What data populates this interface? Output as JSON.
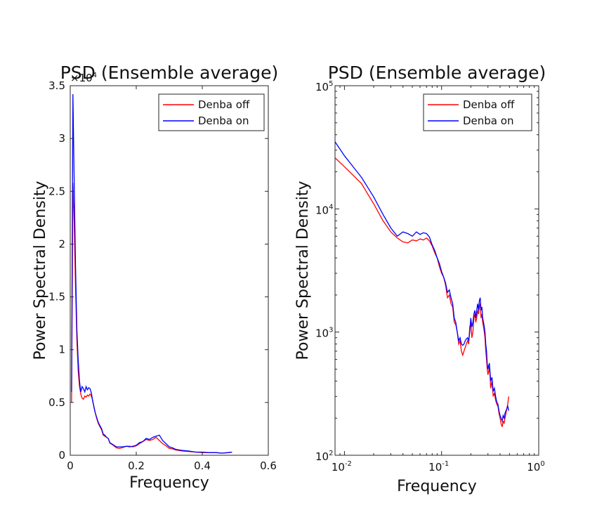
{
  "chart_data": [
    {
      "type": "line",
      "title": "PSD (Ensemble average)",
      "xlabel": "Frequency",
      "ylabel": "Power Spectral Density",
      "y_multiplier": "×10",
      "y_multiplier_exponent": "4",
      "xlim": [
        0,
        0.6
      ],
      "ylim": [
        0,
        35000
      ],
      "x_ticks": [
        "0",
        "0.2",
        "0.4",
        "0.6"
      ],
      "x_tick_values": [
        0,
        0.2,
        0.4,
        0.6
      ],
      "y_ticks": [
        "0",
        "0.5",
        "1",
        "1.5",
        "2",
        "2.5",
        "3",
        "3.5"
      ],
      "y_tick_values": [
        0,
        5000,
        10000,
        15000,
        20000,
        25000,
        30000,
        35000
      ],
      "legend_position": "top-right",
      "series": [
        {
          "name": "Denba off",
          "color": "#ff0000",
          "x": [
            0.004,
            0.008,
            0.012,
            0.016,
            0.02,
            0.024,
            0.028,
            0.032,
            0.036,
            0.04,
            0.044,
            0.048,
            0.052,
            0.056,
            0.06,
            0.064,
            0.068,
            0.072,
            0.076,
            0.08,
            0.085,
            0.09,
            0.095,
            0.1,
            0.105,
            0.11,
            0.115,
            0.12,
            0.13,
            0.14,
            0.15,
            0.16,
            0.17,
            0.18,
            0.19,
            0.2,
            0.21,
            0.22,
            0.23,
            0.24,
            0.25,
            0.26,
            0.27,
            0.28,
            0.29,
            0.3,
            0.31,
            0.32,
            0.34,
            0.36,
            0.38,
            0.4,
            0.42,
            0.44,
            0.46,
            0.48,
            0.49
          ],
          "values": [
            5000,
            25800,
            22000,
            16000,
            11000,
            8000,
            6500,
            5800,
            5400,
            5300,
            5600,
            5500,
            5700,
            5600,
            5800,
            5600,
            5200,
            4500,
            4000,
            3500,
            3000,
            2700,
            2400,
            1900,
            1800,
            1700,
            1600,
            1150,
            950,
            700,
            650,
            750,
            850,
            850,
            800,
            900,
            1100,
            1300,
            1500,
            1400,
            1500,
            1700,
            1400,
            1100,
            900,
            650,
            600,
            500,
            400,
            350,
            300,
            250,
            250,
            250,
            200,
            250,
            300
          ]
        },
        {
          "name": "Denba on",
          "color": "#0000ff",
          "x": [
            0.004,
            0.008,
            0.012,
            0.016,
            0.02,
            0.024,
            0.028,
            0.032,
            0.036,
            0.04,
            0.044,
            0.048,
            0.052,
            0.056,
            0.06,
            0.064,
            0.068,
            0.072,
            0.076,
            0.08,
            0.085,
            0.09,
            0.095,
            0.1,
            0.105,
            0.11,
            0.115,
            0.12,
            0.13,
            0.14,
            0.15,
            0.16,
            0.17,
            0.18,
            0.19,
            0.2,
            0.21,
            0.22,
            0.23,
            0.24,
            0.25,
            0.26,
            0.27,
            0.28,
            0.29,
            0.3,
            0.31,
            0.32,
            0.34,
            0.36,
            0.38,
            0.4,
            0.42,
            0.44,
            0.46,
            0.48,
            0.49
          ],
          "values": [
            6000,
            34200,
            26000,
            18000,
            12000,
            9000,
            7000,
            6000,
            6500,
            6300,
            6000,
            6500,
            6200,
            6400,
            6300,
            5900,
            5100,
            4600,
            4000,
            3600,
            3100,
            2800,
            2500,
            2000,
            1900,
            1700,
            1600,
            1200,
            1000,
            800,
            800,
            800,
            850,
            800,
            850,
            950,
            1200,
            1300,
            1600,
            1500,
            1700,
            1800,
            1900,
            1400,
            1100,
            800,
            700,
            550,
            450,
            400,
            300,
            300,
            250,
            250,
            200,
            250,
            300
          ]
        }
      ]
    },
    {
      "type": "line",
      "title": "PSD (Ensemble average)",
      "xlabel": "Frequency",
      "ylabel": "Power Spectral Density",
      "x_scale": "log",
      "y_scale": "log",
      "xlim": [
        0.008,
        1
      ],
      "ylim": [
        100,
        100000
      ],
      "x_ticks": [
        {
          "base": "10",
          "exp": "-2",
          "value": 0.01
        },
        {
          "base": "10",
          "exp": "-1",
          "value": 0.1
        },
        {
          "base": "10",
          "exp": "0",
          "value": 1
        }
      ],
      "y_ticks": [
        {
          "base": "10",
          "exp": "2",
          "value": 100
        },
        {
          "base": "10",
          "exp": "3",
          "value": 1000
        },
        {
          "base": "10",
          "exp": "4",
          "value": 10000
        },
        {
          "base": "10",
          "exp": "5",
          "value": 100000
        }
      ],
      "legend_position": "top-right",
      "series": [
        {
          "name": "Denba off",
          "color": "#ff0000",
          "x": [
            0.008,
            0.01,
            0.015,
            0.02,
            0.025,
            0.03,
            0.035,
            0.04,
            0.045,
            0.05,
            0.055,
            0.06,
            0.065,
            0.07,
            0.075,
            0.08,
            0.085,
            0.09,
            0.095,
            0.1,
            0.105,
            0.11,
            0.115,
            0.12,
            0.125,
            0.13,
            0.135,
            0.14,
            0.145,
            0.15,
            0.155,
            0.16,
            0.165,
            0.17,
            0.175,
            0.18,
            0.185,
            0.19,
            0.195,
            0.2,
            0.205,
            0.21,
            0.215,
            0.22,
            0.225,
            0.23,
            0.235,
            0.24,
            0.245,
            0.25,
            0.255,
            0.26,
            0.265,
            0.27,
            0.275,
            0.28,
            0.285,
            0.29,
            0.295,
            0.3,
            0.305,
            0.31,
            0.315,
            0.32,
            0.33,
            0.34,
            0.35,
            0.36,
            0.37,
            0.38,
            0.39,
            0.4,
            0.41,
            0.42,
            0.43,
            0.44,
            0.45,
            0.46,
            0.47,
            0.48,
            0.49
          ],
          "values": [
            26000,
            22000,
            16000,
            11000,
            8000,
            6500,
            5800,
            5400,
            5300,
            5600,
            5500,
            5700,
            5600,
            5800,
            5500,
            5000,
            4400,
            4000,
            3400,
            3000,
            2800,
            2400,
            1900,
            2000,
            1700,
            1600,
            1200,
            1150,
            1000,
            800,
            850,
            700,
            650,
            700,
            750,
            800,
            850,
            800,
            1100,
            1200,
            900,
            1000,
            1300,
            1400,
            1200,
            1300,
            1500,
            1400,
            1600,
            1700,
            1300,
            1400,
            1200,
            1100,
            1000,
            900,
            700,
            600,
            500,
            450,
            480,
            520,
            450,
            350,
            400,
            300,
            320,
            280,
            260,
            250,
            220,
            200,
            180,
            170,
            190,
            180,
            200,
            220,
            240,
            260,
            300
          ]
        },
        {
          "name": "Denba on",
          "color": "#0000ff",
          "x": [
            0.008,
            0.01,
            0.015,
            0.02,
            0.025,
            0.03,
            0.035,
            0.04,
            0.045,
            0.05,
            0.055,
            0.06,
            0.065,
            0.07,
            0.075,
            0.08,
            0.085,
            0.09,
            0.095,
            0.1,
            0.105,
            0.11,
            0.115,
            0.12,
            0.125,
            0.13,
            0.135,
            0.14,
            0.145,
            0.15,
            0.155,
            0.16,
            0.165,
            0.17,
            0.175,
            0.18,
            0.185,
            0.19,
            0.195,
            0.2,
            0.205,
            0.21,
            0.215,
            0.22,
            0.225,
            0.23,
            0.235,
            0.24,
            0.245,
            0.25,
            0.255,
            0.26,
            0.265,
            0.27,
            0.275,
            0.28,
            0.285,
            0.29,
            0.295,
            0.3,
            0.305,
            0.31,
            0.315,
            0.32,
            0.33,
            0.34,
            0.35,
            0.36,
            0.37,
            0.38,
            0.39,
            0.4,
            0.41,
            0.42,
            0.43,
            0.44,
            0.45,
            0.46,
            0.47,
            0.48,
            0.49
          ],
          "values": [
            35000,
            27000,
            18000,
            12500,
            9000,
            7000,
            6000,
            6500,
            6300,
            6000,
            6500,
            6200,
            6400,
            6300,
            5900,
            5100,
            4600,
            4000,
            3600,
            3100,
            2800,
            2500,
            2100,
            2200,
            1900,
            1700,
            1300,
            1200,
            1000,
            850,
            900,
            800,
            780,
            800,
            850,
            880,
            900,
            850,
            1000,
            1300,
            1100,
            1200,
            1400,
            1500,
            1300,
            1500,
            1700,
            1500,
            1800,
            1900,
            1500,
            1600,
            1300,
            1200,
            1100,
            1000,
            800,
            700,
            550,
            500,
            530,
            560,
            480,
            400,
            430,
            330,
            350,
            300,
            270,
            260,
            230,
            210,
            200,
            190,
            210,
            200,
            220,
            230,
            240,
            250,
            230
          ]
        }
      ]
    }
  ]
}
